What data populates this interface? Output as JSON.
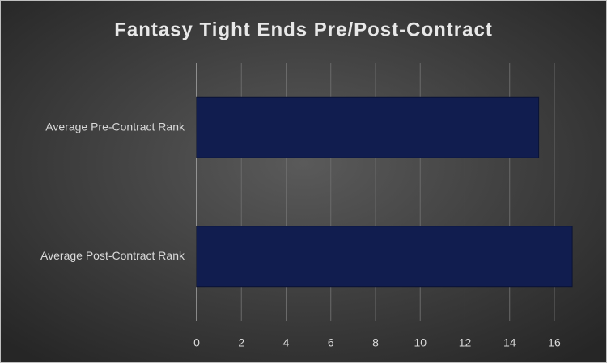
{
  "chart_data": {
    "type": "hbar",
    "title": "Fantasy Tight Ends Pre/Post-Contract",
    "categories": [
      "Average Pre-Contract Rank",
      "Average Post-Contract Rank"
    ],
    "values": [
      15.3,
      16.8
    ],
    "color": "#111d4f",
    "xlim": [
      0,
      17
    ],
    "xticks": [
      0,
      2,
      4,
      6,
      8,
      10,
      12,
      14,
      16
    ],
    "grid": true
  }
}
